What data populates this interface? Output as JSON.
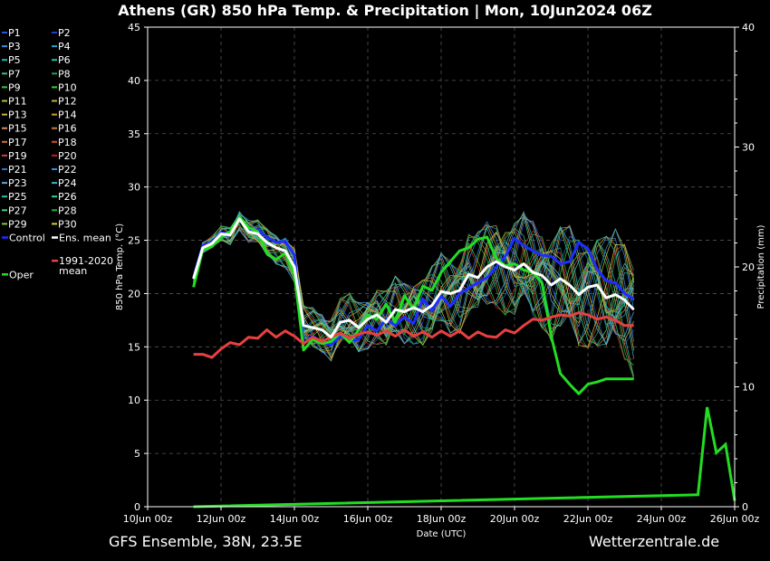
{
  "title": "Athens  (GR)  850 hPa Temp. & Precipitation | Mon, 10Jun2024 06Z",
  "footer_left": "GFS Ensemble, 38N, 23.5E",
  "footer_right": "Wetterzentrale.de",
  "chart_data": {
    "type": "line",
    "xlabel": "Date (UTC)",
    "ylabel": "850 hPa Temp. (°C)",
    "y2label": "Precipitation (mm)",
    "ylim": [
      0,
      45
    ],
    "y2lim": [
      0,
      40
    ],
    "yticks": [
      0,
      5,
      10,
      15,
      20,
      25,
      30,
      35,
      40,
      45
    ],
    "y2ticks": [
      0,
      10,
      20,
      30,
      40
    ],
    "xlim": [
      0,
      384
    ],
    "xtick_hours": [
      0,
      48,
      96,
      144,
      192,
      240,
      288,
      336,
      384
    ],
    "xtick_labels": [
      "10Jun 00z",
      "12Jun 00z",
      "14Jun 00z",
      "16Jun 00z",
      "18Jun 00z",
      "20Jun 00z",
      "22Jun 00z",
      "24Jun 00z",
      "26Jun 00z"
    ],
    "grid": true,
    "legend_placement": "left outside",
    "time_step_hours": 6,
    "first_hour": 30,
    "legend": [
      {
        "label": "P1",
        "color": "#3050e0"
      },
      {
        "label": "P2",
        "color": "#2040c0"
      },
      {
        "label": "P3",
        "color": "#3a8ae0"
      },
      {
        "label": "P4",
        "color": "#2aa0c0"
      },
      {
        "label": "P5",
        "color": "#20b8c0"
      },
      {
        "label": "P6",
        "color": "#20c0a0"
      },
      {
        "label": "P7",
        "color": "#30c090"
      },
      {
        "label": "P8",
        "color": "#20a060"
      },
      {
        "label": "P9",
        "color": "#40c040"
      },
      {
        "label": "P10",
        "color": "#30d030"
      },
      {
        "label": "P11",
        "color": "#b0c040"
      },
      {
        "label": "P12",
        "color": "#c0b040"
      },
      {
        "label": "P13",
        "color": "#d0b040"
      },
      {
        "label": "P14",
        "color": "#d0a030"
      },
      {
        "label": "P15",
        "color": "#d09060"
      },
      {
        "label": "P16",
        "color": "#c08040"
      },
      {
        "label": "P17",
        "color": "#d07040"
      },
      {
        "label": "P18",
        "color": "#d05030"
      },
      {
        "label": "P19",
        "color": "#d04040"
      },
      {
        "label": "P20",
        "color": "#c02020"
      },
      {
        "label": "P21",
        "color": "#3070d0"
      },
      {
        "label": "P22",
        "color": "#3090e0"
      },
      {
        "label": "P23",
        "color": "#60a8e0"
      },
      {
        "label": "P24",
        "color": "#40b0d0"
      },
      {
        "label": "P25",
        "color": "#30c0b0"
      },
      {
        "label": "P26",
        "color": "#30d0a0"
      },
      {
        "label": "P27",
        "color": "#40d080"
      },
      {
        "label": "P28",
        "color": "#20b040"
      },
      {
        "label": "P29",
        "color": "#80d040"
      },
      {
        "label": "P30",
        "color": "#d0d040"
      },
      {
        "label": "Control",
        "color": "#1e2eff"
      },
      {
        "label": "Ens. mean",
        "color": "#ffffff"
      },
      {
        "label": "1991-2020 mean",
        "color": "#e84040"
      },
      {
        "label": "Oper",
        "color": "#22dd22"
      }
    ],
    "series": [
      {
        "name": "Control",
        "color": "#1e2eff",
        "values": [
          21.5,
          24.5,
          24.8,
          25.7,
          25.6,
          27.2,
          25.9,
          26.0,
          25.3,
          24.8,
          24.9,
          23.6,
          15.3,
          16.0,
          15.4,
          15.2,
          16.0,
          15.6,
          15.7,
          17.0,
          16.5,
          17.6,
          17.0,
          17.8,
          17.2,
          19.5,
          18.4,
          19.8,
          18.8,
          20.0,
          20.5,
          21.0,
          21.5,
          22.5,
          23.5,
          25.2,
          24.5,
          24.0,
          23.6,
          23.5,
          22.8,
          23.0,
          24.8,
          24.2,
          22.3,
          21.2,
          21.0,
          20.0,
          19.5
        ]
      },
      {
        "name": "Ens. mean",
        "color": "#ffffff",
        "values": [
          21.4,
          24.3,
          24.7,
          25.6,
          25.5,
          27.0,
          25.8,
          25.6,
          24.8,
          24.3,
          24.0,
          22.5,
          17.0,
          16.8,
          16.6,
          15.9,
          17.3,
          17.5,
          16.8,
          17.6,
          18.0,
          17.3,
          18.5,
          18.3,
          18.7,
          18.3,
          18.9,
          20.2,
          20.0,
          20.3,
          21.8,
          21.5,
          22.5,
          23.0,
          22.5,
          22.2,
          22.8,
          22.0,
          21.7,
          20.8,
          21.4,
          20.8,
          19.9,
          20.6,
          20.8,
          19.6,
          19.9,
          19.4,
          18.5
        ]
      },
      {
        "name": "1991-2020 mean",
        "color": "#e84040",
        "values": [
          14.3,
          14.3,
          14.0,
          14.8,
          15.4,
          15.2,
          15.9,
          15.8,
          16.6,
          15.9,
          16.5,
          16.0,
          15.3,
          15.9,
          15.5,
          15.9,
          16.3,
          15.8,
          16.2,
          16.4,
          16.1,
          16.5,
          16.0,
          16.6,
          16.0,
          16.4,
          15.9,
          16.5,
          16.0,
          16.5,
          15.8,
          16.4,
          16.0,
          15.9,
          16.6,
          16.3,
          17.0,
          17.6,
          17.5,
          17.8,
          18.0,
          17.9,
          18.2,
          18.0,
          17.6,
          17.8,
          17.5,
          17.0,
          17.0
        ]
      },
      {
        "name": "Oper",
        "color": "#22dd22",
        "values": [
          20.6,
          24.1,
          24.4,
          25.3,
          25.8,
          27.2,
          26.2,
          25.8,
          23.8,
          23.2,
          23.8,
          21.8,
          14.7,
          15.7,
          15.3,
          15.5,
          16.3,
          15.4,
          16.6,
          18.0,
          17.6,
          19.0,
          17.3,
          19.8,
          18.5,
          20.7,
          20.3,
          22.0,
          23.0,
          24.0,
          24.3,
          25.1,
          25.3,
          23.3,
          22.6,
          22.8,
          22.2,
          22.0,
          21.0,
          16.0,
          12.5,
          11.5,
          10.6,
          11.5,
          11.7,
          12.0,
          12.0,
          12.0,
          12.0
        ]
      }
    ],
    "precipitation_series": [
      {
        "name": "Oper",
        "color": "#22dd22",
        "hours": [
          360,
          366,
          372,
          378,
          384
        ],
        "values": [
          1.0,
          8.3,
          4.5,
          5.2,
          0.5
        ]
      }
    ]
  }
}
